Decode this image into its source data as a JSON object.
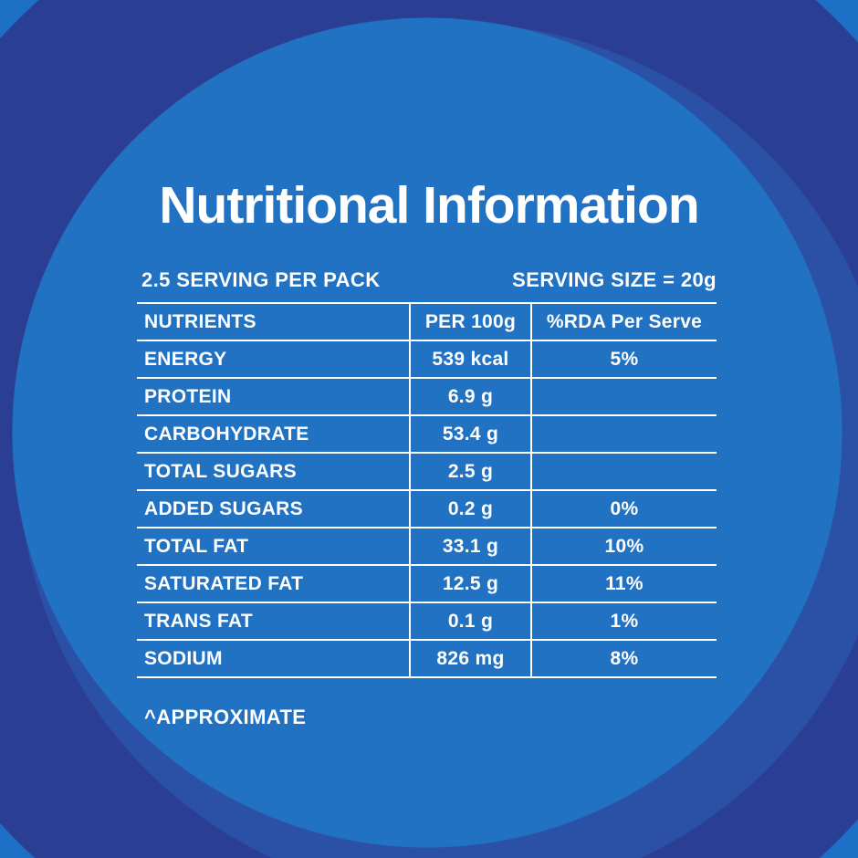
{
  "title": "Nutritional Information",
  "serving_info": {
    "servings_per_pack": "2.5 SERVING PER PACK",
    "serving_size": "SERVING SIZE = 20g"
  },
  "table": {
    "columns": [
      "NUTRIENTS",
      "PER 100g",
      "%RDA Per Serve"
    ],
    "rows": [
      {
        "nutrient": "ENERGY",
        "per_100g": "539 kcal",
        "rda_per_serve": "5%",
        "indent": 0
      },
      {
        "nutrient": "PROTEIN",
        "per_100g": "6.9 g",
        "rda_per_serve": "",
        "indent": 0
      },
      {
        "nutrient": "CARBOHYDRATE",
        "per_100g": "53.4 g",
        "rda_per_serve": "",
        "indent": 0
      },
      {
        "nutrient": "TOTAL SUGARS",
        "per_100g": "2.5 g",
        "rda_per_serve": "",
        "indent": 1
      },
      {
        "nutrient": "ADDED SUGARS",
        "per_100g": "0.2 g",
        "rda_per_serve": "0%",
        "indent": 2
      },
      {
        "nutrient": "TOTAL FAT",
        "per_100g": "33.1 g",
        "rda_per_serve": "10%",
        "indent": 0
      },
      {
        "nutrient": "SATURATED FAT",
        "per_100g": "12.5 g",
        "rda_per_serve": "11%",
        "indent": 1
      },
      {
        "nutrient": "TRANS FAT",
        "per_100g": "0.1 g",
        "rda_per_serve": "1%",
        "indent": 1
      },
      {
        "nutrient": "SODIUM",
        "per_100g": "826 mg",
        "rda_per_serve": "8%",
        "indent": 0
      }
    ],
    "footnote": "^APPROXIMATE"
  },
  "colors": {
    "background_inner": "#2172c3",
    "ring_mid": "#2b51a6",
    "ring_navy": "#2a3f93",
    "background_outer": "#1e70c7",
    "text": "#ffffff"
  }
}
